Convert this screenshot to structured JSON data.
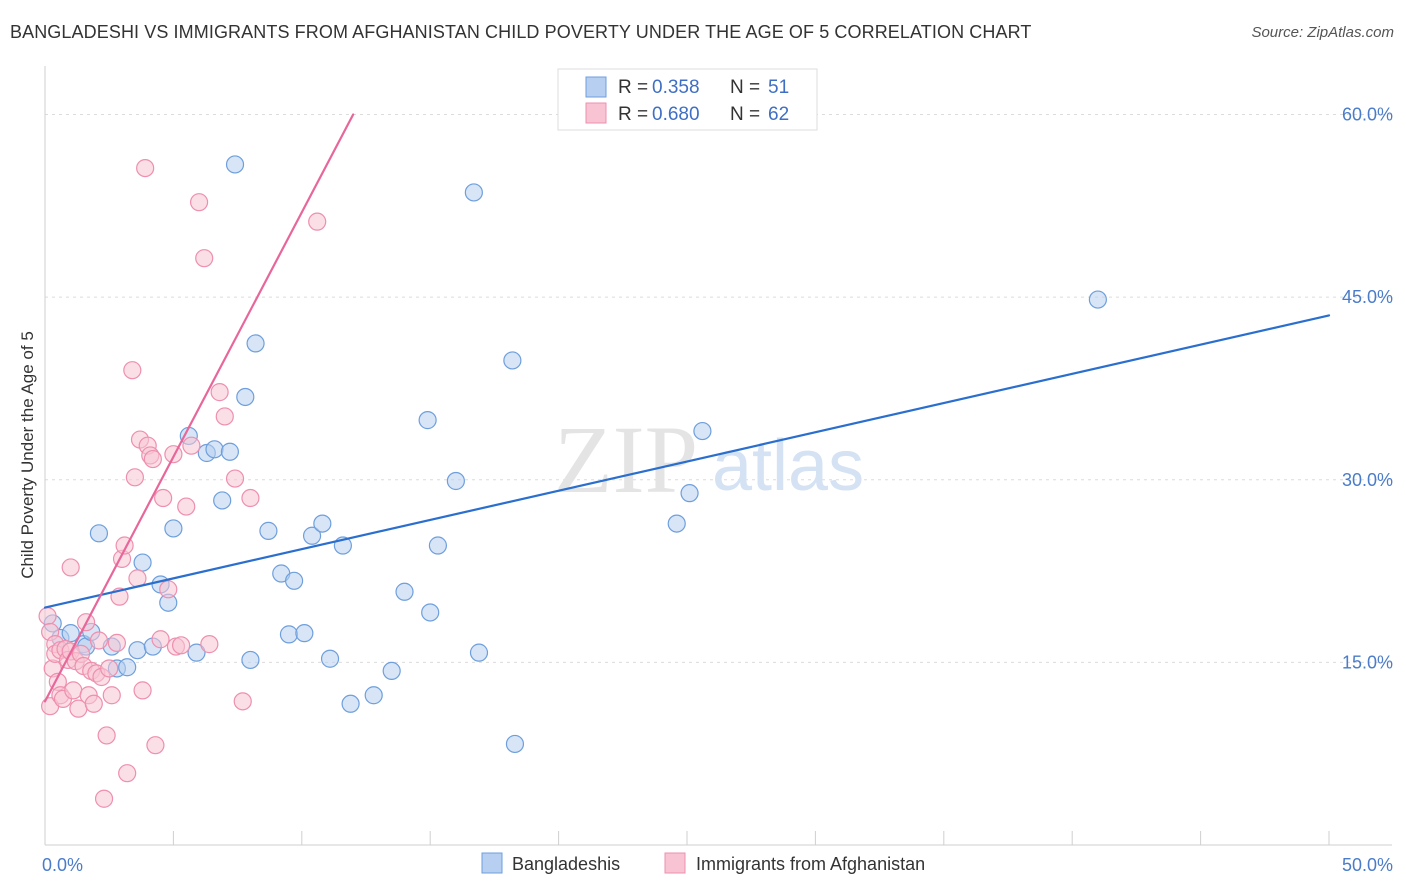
{
  "title": "BANGLADESHI VS IMMIGRANTS FROM AFGHANISTAN CHILD POVERTY UNDER THE AGE OF 5 CORRELATION CHART",
  "source": "Source: ZipAtlas.com",
  "watermark": {
    "zip": "ZIP",
    "atlas": "atlas"
  },
  "chart_data": {
    "type": "scatter",
    "ylabel": "Child Poverty Under the Age of 5",
    "xlim": [
      0,
      50
    ],
    "ylim": [
      0,
      63
    ],
    "x_tick_labels": {
      "min": "0.0%",
      "max": "50.0%"
    },
    "y_ticks": [
      {
        "value": 15,
        "label": "15.0%"
      },
      {
        "value": 30,
        "label": "30.0%"
      },
      {
        "value": 45,
        "label": "45.0%"
      },
      {
        "value": 60,
        "label": "60.0%"
      }
    ],
    "legend": {
      "rows": [
        {
          "r_label": "R =",
          "r_value": "0.358",
          "n_label": "N =",
          "n_value": "51"
        },
        {
          "r_label": "R =",
          "r_value": "0.680",
          "n_label": "N =",
          "n_value": "62"
        }
      ]
    },
    "series": [
      {
        "name": "Bangladeshis",
        "color": "#6e9fdc",
        "fill": "#b7cff0",
        "line_color": "#2b6fce",
        "trend": [
          [
            0,
            19.5
          ],
          [
            50,
            43.5
          ]
        ],
        "points": [
          [
            0.3,
            18.2
          ],
          [
            0.6,
            17.0
          ],
          [
            1.0,
            17.4
          ],
          [
            1.5,
            16.5
          ],
          [
            1.6,
            16.3
          ],
          [
            1.8,
            17.5
          ],
          [
            2.1,
            25.6
          ],
          [
            2.6,
            16.3
          ],
          [
            2.8,
            14.5
          ],
          [
            3.2,
            14.6
          ],
          [
            3.6,
            16.0
          ],
          [
            3.8,
            23.2
          ],
          [
            4.2,
            16.3
          ],
          [
            4.5,
            21.4
          ],
          [
            4.8,
            19.9
          ],
          [
            5.0,
            26.0
          ],
          [
            5.6,
            33.6
          ],
          [
            5.9,
            15.8
          ],
          [
            6.3,
            32.2
          ],
          [
            6.6,
            32.5
          ],
          [
            6.9,
            28.3
          ],
          [
            7.2,
            32.3
          ],
          [
            7.4,
            55.9
          ],
          [
            7.8,
            36.8
          ],
          [
            8.0,
            15.2
          ],
          [
            8.2,
            41.2
          ],
          [
            8.7,
            25.8
          ],
          [
            9.2,
            22.3
          ],
          [
            9.5,
            17.3
          ],
          [
            9.7,
            21.7
          ],
          [
            10.1,
            17.4
          ],
          [
            10.4,
            25.4
          ],
          [
            10.8,
            26.4
          ],
          [
            11.1,
            15.3
          ],
          [
            11.6,
            24.6
          ],
          [
            11.9,
            11.6
          ],
          [
            12.8,
            12.3
          ],
          [
            13.5,
            14.3
          ],
          [
            14.0,
            20.8
          ],
          [
            14.9,
            34.9
          ],
          [
            15.0,
            19.1
          ],
          [
            15.3,
            24.6
          ],
          [
            16.0,
            29.9
          ],
          [
            16.7,
            53.6
          ],
          [
            16.9,
            15.8
          ],
          [
            18.2,
            39.8
          ],
          [
            18.3,
            8.3
          ],
          [
            24.6,
            26.4
          ],
          [
            25.1,
            28.9
          ],
          [
            25.6,
            34.0
          ],
          [
            41.0,
            44.8
          ]
        ]
      },
      {
        "name": "Immigrants from Afghanistan",
        "color": "#ee8fae",
        "fill": "#f8c4d4",
        "line_color": "#e8679a",
        "trend": [
          [
            0,
            11.8
          ],
          [
            12,
            60
          ]
        ],
        "points": [
          [
            0.1,
            18.8
          ],
          [
            0.2,
            17.5
          ],
          [
            0.2,
            11.4
          ],
          [
            0.3,
            14.5
          ],
          [
            0.4,
            16.5
          ],
          [
            0.4,
            15.7
          ],
          [
            0.5,
            13.4
          ],
          [
            0.6,
            16.0
          ],
          [
            0.6,
            12.3
          ],
          [
            0.7,
            12.0
          ],
          [
            0.8,
            16.1
          ],
          [
            0.9,
            15.2
          ],
          [
            1.0,
            22.8
          ],
          [
            1.0,
            15.9
          ],
          [
            1.1,
            12.7
          ],
          [
            1.2,
            15.1
          ],
          [
            1.3,
            11.2
          ],
          [
            1.4,
            15.7
          ],
          [
            1.5,
            14.7
          ],
          [
            1.6,
            18.3
          ],
          [
            1.7,
            12.3
          ],
          [
            1.8,
            14.3
          ],
          [
            1.9,
            11.6
          ],
          [
            2.0,
            14.1
          ],
          [
            2.1,
            16.8
          ],
          [
            2.2,
            13.8
          ],
          [
            2.3,
            3.8
          ],
          [
            2.4,
            9.0
          ],
          [
            2.5,
            14.5
          ],
          [
            2.6,
            12.3
          ],
          [
            2.8,
            16.6
          ],
          [
            2.9,
            20.4
          ],
          [
            3.0,
            23.5
          ],
          [
            3.1,
            24.6
          ],
          [
            3.2,
            5.9
          ],
          [
            3.4,
            39.0
          ],
          [
            3.5,
            30.2
          ],
          [
            3.6,
            21.9
          ],
          [
            3.7,
            33.3
          ],
          [
            3.9,
            55.6
          ],
          [
            4.0,
            32.8
          ],
          [
            4.1,
            32.0
          ],
          [
            4.2,
            31.7
          ],
          [
            4.3,
            8.2
          ],
          [
            4.5,
            16.9
          ],
          [
            4.6,
            28.5
          ],
          [
            4.8,
            21.0
          ],
          [
            5.0,
            32.1
          ],
          [
            5.1,
            16.3
          ],
          [
            5.3,
            16.4
          ],
          [
            5.5,
            27.8
          ],
          [
            5.7,
            32.8
          ],
          [
            6.0,
            52.8
          ],
          [
            6.2,
            48.2
          ],
          [
            6.4,
            16.5
          ],
          [
            6.8,
            37.2
          ],
          [
            7.0,
            35.2
          ],
          [
            7.4,
            30.1
          ],
          [
            7.7,
            11.8
          ],
          [
            8.0,
            28.5
          ],
          [
            10.6,
            51.2
          ],
          [
            3.8,
            12.7
          ]
        ]
      }
    ]
  }
}
